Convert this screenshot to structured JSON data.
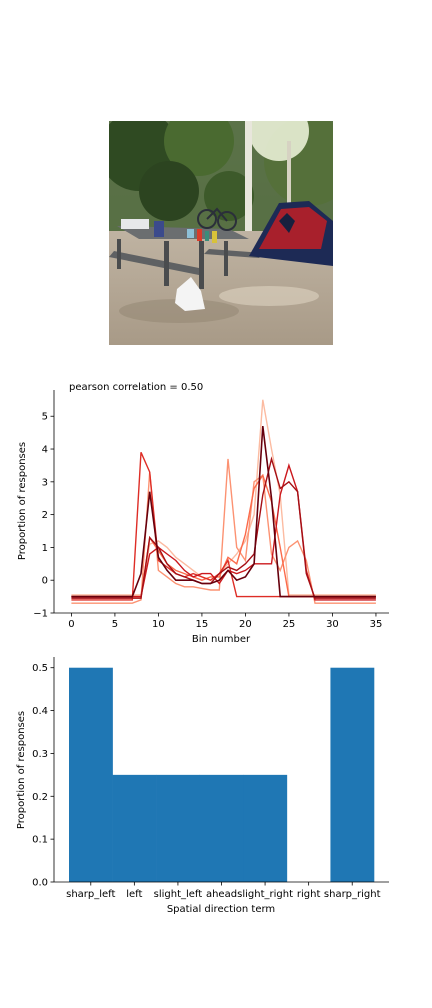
{
  "photo": {
    "description_icon": "photo-campsite"
  },
  "chart_data": [
    {
      "type": "line",
      "title": "pearson correlation = 0.50",
      "xlabel": "Bin number",
      "ylabel": "Proportion of responses",
      "xlim": [
        -2,
        36.5
      ],
      "ylim": [
        -1.0,
        5.8
      ],
      "xticks": [
        0,
        5,
        10,
        15,
        20,
        25,
        30,
        35
      ],
      "yticks": [
        -1,
        0,
        1,
        2,
        3,
        4,
        5
      ],
      "grid": false,
      "legend": "none",
      "series": [
        {
          "color": "#fcbba1",
          "values": [
            -0.45,
            -0.45,
            -0.45,
            -0.45,
            -0.45,
            -0.45,
            -0.45,
            -0.45,
            -0.45,
            1.1,
            1.2,
            1.0,
            0.7,
            0.5,
            0.3,
            0.1,
            0.0,
            0.2,
            0.5,
            0.8,
            1.2,
            2.0,
            5.5,
            4.0,
            2.6,
            -0.45,
            -0.45,
            -0.45,
            -0.45,
            -0.45,
            -0.45,
            -0.45,
            -0.45,
            -0.45,
            -0.45,
            -0.45
          ]
        },
        {
          "color": "#fc9272",
          "values": [
            -0.7,
            -0.7,
            -0.7,
            -0.7,
            -0.7,
            -0.7,
            -0.7,
            -0.7,
            -0.6,
            3.3,
            0.3,
            0.1,
            -0.1,
            -0.2,
            -0.2,
            -0.25,
            -0.3,
            -0.3,
            3.7,
            1.0,
            0.6,
            3.0,
            3.2,
            0.8,
            0.3,
            1.0,
            1.2,
            0.6,
            -0.7,
            -0.7,
            -0.7,
            -0.7,
            -0.7,
            -0.7,
            -0.7,
            -0.7
          ]
        },
        {
          "color": "#fb6a4a",
          "values": [
            -0.5,
            -0.5,
            -0.5,
            -0.5,
            -0.5,
            -0.5,
            -0.5,
            -0.5,
            -0.5,
            1.3,
            0.9,
            0.5,
            0.3,
            0.2,
            0.1,
            0.0,
            0.1,
            0.1,
            0.7,
            0.5,
            1.4,
            2.8,
            3.2,
            2.4,
            1.0,
            -0.5,
            -0.5,
            -0.5,
            -0.5,
            -0.5,
            -0.5,
            -0.5,
            -0.5,
            -0.5,
            -0.5,
            -0.5
          ]
        },
        {
          "color": "#de2d26",
          "values": [
            -0.6,
            -0.6,
            -0.6,
            -0.6,
            -0.6,
            -0.6,
            -0.6,
            -0.6,
            3.9,
            3.3,
            0.6,
            0.4,
            0.2,
            0.1,
            0.2,
            0.1,
            0.0,
            0.2,
            0.6,
            -0.5,
            -0.5,
            -0.5,
            -0.5,
            -0.5,
            -0.5,
            -0.5,
            -0.5,
            -0.5,
            -0.5,
            -0.5,
            -0.5,
            -0.5,
            -0.5,
            -0.5,
            -0.5,
            -0.5
          ]
        },
        {
          "color": "#cb181d",
          "values": [
            -0.5,
            -0.5,
            -0.5,
            -0.5,
            -0.5,
            -0.5,
            -0.5,
            -0.5,
            -0.5,
            0.8,
            1.0,
            0.8,
            0.6,
            0.3,
            0.1,
            0.2,
            0.2,
            -0.1,
            0.3,
            0.2,
            0.3,
            0.5,
            0.5,
            0.5,
            2.6,
            3.5,
            2.7,
            0.3,
            -0.6,
            -0.6,
            -0.6,
            -0.6,
            -0.6,
            -0.6,
            -0.6,
            -0.6
          ]
        },
        {
          "color": "#a50f15",
          "values": [
            -0.55,
            -0.55,
            -0.55,
            -0.55,
            -0.55,
            -0.55,
            -0.55,
            -0.55,
            -0.55,
            1.3,
            1.0,
            0.5,
            0.2,
            0.1,
            0.0,
            -0.1,
            -0.1,
            0.2,
            0.4,
            0.3,
            0.5,
            0.8,
            2.6,
            3.7,
            2.8,
            3.0,
            2.7,
            0.2,
            -0.55,
            -0.55,
            -0.55,
            -0.55,
            -0.55,
            -0.55,
            -0.55,
            -0.55
          ]
        },
        {
          "color": "#67000d",
          "values": [
            -0.5,
            -0.5,
            -0.5,
            -0.5,
            -0.5,
            -0.5,
            -0.5,
            -0.5,
            0.2,
            2.7,
            0.7,
            0.3,
            0.0,
            0.0,
            0.0,
            -0.1,
            -0.1,
            0.0,
            0.3,
            0.0,
            0.1,
            0.5,
            4.7,
            2.5,
            -0.5,
            -0.5,
            -0.5,
            -0.5,
            -0.5,
            -0.5,
            -0.5,
            -0.5,
            -0.5,
            -0.5,
            -0.5,
            -0.5
          ]
        }
      ]
    },
    {
      "type": "bar",
      "xlabel": "Spatial direction term",
      "ylabel": "Proportion of responses",
      "categories": [
        "sharp_left",
        "left",
        "slight_left",
        "ahead",
        "slight_right",
        "right",
        "sharp_right"
      ],
      "values": [
        0.5,
        0.25,
        0.25,
        0.25,
        0.25,
        0.0,
        0.5
      ],
      "ylim": [
        0,
        0.525
      ],
      "yticks": [
        "0.0",
        "0.1",
        "0.2",
        "0.3",
        "0.4",
        "0.5"
      ],
      "color": "#1f77b4",
      "grid": false,
      "legend": "none"
    }
  ]
}
